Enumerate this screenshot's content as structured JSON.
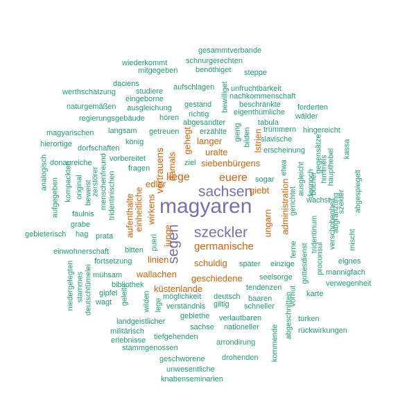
{
  "colors": {
    "tier1": "#7570b3",
    "tier2": "#d95f02",
    "tier3": "#1b9e77"
  },
  "words": [
    {
      "text": "magyaren",
      "tier": 1
    },
    {
      "text": "sachsen",
      "tier": 1
    },
    {
      "text": "szeckler",
      "tier": 1
    },
    {
      "text": "segen",
      "tier": 1
    },
    {
      "text": "liege",
      "tier": 2
    },
    {
      "text": "euere",
      "tier": 2
    },
    {
      "text": "germanische",
      "tier": 2
    },
    {
      "text": "siebenbürgens",
      "tier": 2
    },
    {
      "text": "langer",
      "tier": 2
    },
    {
      "text": "uralte",
      "tier": 2
    },
    {
      "text": "giebt",
      "tier": 2
    },
    {
      "text": "ungarn",
      "tier": 2
    },
    {
      "text": "administration",
      "tier": 2
    },
    {
      "text": "schuldig",
      "tier": 2
    },
    {
      "text": "geschiedene",
      "tier": 2
    },
    {
      "text": "linien",
      "tier": 2
    },
    {
      "text": "wallachen",
      "tier": 2
    },
    {
      "text": "küstenlande",
      "tier": 2
    },
    {
      "text": "vertrauens",
      "tier": 2
    },
    {
      "text": "damals",
      "tier": 2
    },
    {
      "text": "gehegt",
      "tier": 2
    },
    {
      "text": "edler",
      "tier": 2
    },
    {
      "text": "aufenthalte",
      "tier": 2
    },
    {
      "text": "einheitliche",
      "tier": 2
    },
    {
      "text": "wirkens",
      "tier": 2
    },
    {
      "text": "junge",
      "tier": 2
    },
    {
      "text": "lstrien",
      "tier": 2
    },
    {
      "text": "gesammtverbande",
      "tier": 3
    },
    {
      "text": "schnurgerechten",
      "tier": 3
    },
    {
      "text": "wiederkommt",
      "tier": 3
    },
    {
      "text": "benöthiget",
      "tier": 3
    },
    {
      "text": "mitgegeben",
      "tier": 3
    },
    {
      "text": "steppe",
      "tier": 3
    },
    {
      "text": "daciens",
      "tier": 3
    },
    {
      "text": "aufschlagen",
      "tier": 3
    },
    {
      "text": "unfruchtbarkeit",
      "tier": 3
    },
    {
      "text": "werthschätzung",
      "tier": 3
    },
    {
      "text": "studiere",
      "tier": 3
    },
    {
      "text": "eingeborne",
      "tier": 3
    },
    {
      "text": "nachkommenschaft",
      "tier": 3
    },
    {
      "text": "naturgemäßen",
      "tier": 3
    },
    {
      "text": "ausgleichung",
      "tier": 3
    },
    {
      "text": "gestand",
      "tier": 3
    },
    {
      "text": "beschränkte",
      "tier": 3
    },
    {
      "text": "forderten",
      "tier": 3
    },
    {
      "text": "eigenthümliche",
      "tier": 3
    },
    {
      "text": "regierungsgebäude",
      "tier": 3
    },
    {
      "text": "hören",
      "tier": 3
    },
    {
      "text": "richtig",
      "tier": 3
    },
    {
      "text": "bewilliget",
      "tier": 3
    },
    {
      "text": "wälder",
      "tier": 3
    },
    {
      "text": "abgesandter",
      "tier": 3
    },
    {
      "text": "tabula",
      "tier": 3
    },
    {
      "text": "magyarischen",
      "tier": 3
    },
    {
      "text": "langsam",
      "tier": 3
    },
    {
      "text": "getreuen",
      "tier": 3
    },
    {
      "text": "erzählte",
      "tier": 3
    },
    {
      "text": "gieng",
      "tier": 3
    },
    {
      "text": "bilden",
      "tier": 3
    },
    {
      "text": "trümmern",
      "tier": 3
    },
    {
      "text": "hingereicht",
      "tier": 3
    },
    {
      "text": "hierortige",
      "tier": 3
    },
    {
      "text": "dorfschaften",
      "tier": 3
    },
    {
      "text": "könig",
      "tier": 3
    },
    {
      "text": "slavische",
      "tier": 3
    },
    {
      "text": "erscheinung",
      "tier": 3
    },
    {
      "text": "donaureiche",
      "tier": 3
    },
    {
      "text": "vorbereitet",
      "tier": 3
    },
    {
      "text": "fragen",
      "tier": 3
    },
    {
      "text": "ziel",
      "tier": 3
    },
    {
      "text": "etwa",
      "tier": 3
    },
    {
      "text": "ausgleicht",
      "tier": 3
    },
    {
      "text": "gegensätze",
      "tier": 3
    },
    {
      "text": "kassa",
      "tier": 3
    },
    {
      "text": "analogisch",
      "tier": 3
    },
    {
      "text": "kompackten",
      "tier": 3
    },
    {
      "text": "original",
      "tier": 3
    },
    {
      "text": "beweist",
      "tier": 3
    },
    {
      "text": "zerstörer",
      "tier": 3
    },
    {
      "text": "menschenfreund",
      "tier": 3
    },
    {
      "text": "tridentinischen",
      "tier": 3
    },
    {
      "text": "sogar",
      "tier": 3
    },
    {
      "text": "ferne",
      "tier": 3
    },
    {
      "text": "gerichtet",
      "tier": 3
    },
    {
      "text": "dennoch",
      "tier": 3
    },
    {
      "text": "bücher",
      "tier": 3
    },
    {
      "text": "himmels",
      "tier": 3
    },
    {
      "text": "haupthebel",
      "tier": 3
    },
    {
      "text": "abgespiegelt",
      "tier": 3
    },
    {
      "text": "aufgegeben",
      "tier": 3
    },
    {
      "text": "fäulnis",
      "tier": 3
    },
    {
      "text": "wächst",
      "tier": 3
    },
    {
      "text": "tridentinum",
      "tier": 3
    },
    {
      "text": "verschobenheit",
      "tier": 3
    },
    {
      "text": "abgränzung",
      "tier": 3
    },
    {
      "text": "szekler",
      "tier": 3
    },
    {
      "text": "grabe",
      "tier": 3
    },
    {
      "text": "gebieterisch",
      "tier": 3
    },
    {
      "text": "hag",
      "tier": 3
    },
    {
      "text": "prata",
      "tier": 3
    },
    {
      "text": "puerl",
      "tier": 3
    },
    {
      "text": "gottesdienst",
      "tier": 3
    },
    {
      "text": "proconsul",
      "tier": 3
    },
    {
      "text": "mischt",
      "tier": 3
    },
    {
      "text": "einwohnerschaft",
      "tier": 3
    },
    {
      "text": "bitten",
      "tier": 3
    },
    {
      "text": "fortsetzung",
      "tier": 3
    },
    {
      "text": "später",
      "tier": 3
    },
    {
      "text": "einzige",
      "tier": 3
    },
    {
      "text": "eignes",
      "tier": 3
    },
    {
      "text": "niedergelegten",
      "tier": 3
    },
    {
      "text": "stammes",
      "tier": 3
    },
    {
      "text": "deutschtümelei",
      "tier": 3
    },
    {
      "text": "mühsam",
      "tier": 3
    },
    {
      "text": "mannigfach",
      "tier": 3
    },
    {
      "text": "bibliothek",
      "tier": 3
    },
    {
      "text": "seelsorge",
      "tier": 3
    },
    {
      "text": "verwegenheit",
      "tier": 3
    },
    {
      "text": "gipfel",
      "tier": 3
    },
    {
      "text": "tendenzen",
      "tier": 3
    },
    {
      "text": "wagt",
      "tier": 3
    },
    {
      "text": "geleite",
      "tier": 3
    },
    {
      "text": "wilden",
      "tier": 3
    },
    {
      "text": "lege",
      "tier": 3
    },
    {
      "text": "möglichkeit",
      "tier": 3
    },
    {
      "text": "deutsch",
      "tier": 3
    },
    {
      "text": "baaren",
      "tier": 3
    },
    {
      "text": "vorhut",
      "tier": 3
    },
    {
      "text": "karte",
      "tier": 3
    },
    {
      "text": "verständnis",
      "tier": 3
    },
    {
      "text": "giltig",
      "tier": 3
    },
    {
      "text": "schneller",
      "tier": 3
    },
    {
      "text": "landgeistlicher",
      "tier": 3
    },
    {
      "text": "gebiethe",
      "tier": 3
    },
    {
      "text": "verlautbaren",
      "tier": 3
    },
    {
      "text": "türken",
      "tier": 3
    },
    {
      "text": "militärisch",
      "tier": 3
    },
    {
      "text": "sachse",
      "tier": 3
    },
    {
      "text": "nationeller",
      "tier": 3
    },
    {
      "text": "rückwirkungen",
      "tier": 3
    },
    {
      "text": "erlebnisse",
      "tier": 3
    },
    {
      "text": "tiefgehenden",
      "tier": 3
    },
    {
      "text": "abgeschnitten",
      "tier": 3
    },
    {
      "text": "stammgenossen",
      "tier": 3
    },
    {
      "text": "arrondirung",
      "tier": 3
    },
    {
      "text": "kommende",
      "tier": 3
    },
    {
      "text": "geschworene",
      "tier": 3
    },
    {
      "text": "drohenden",
      "tier": 3
    },
    {
      "text": "unwesentliche",
      "tier": 3
    },
    {
      "text": "knabenseminarien",
      "tier": 3
    }
  ]
}
